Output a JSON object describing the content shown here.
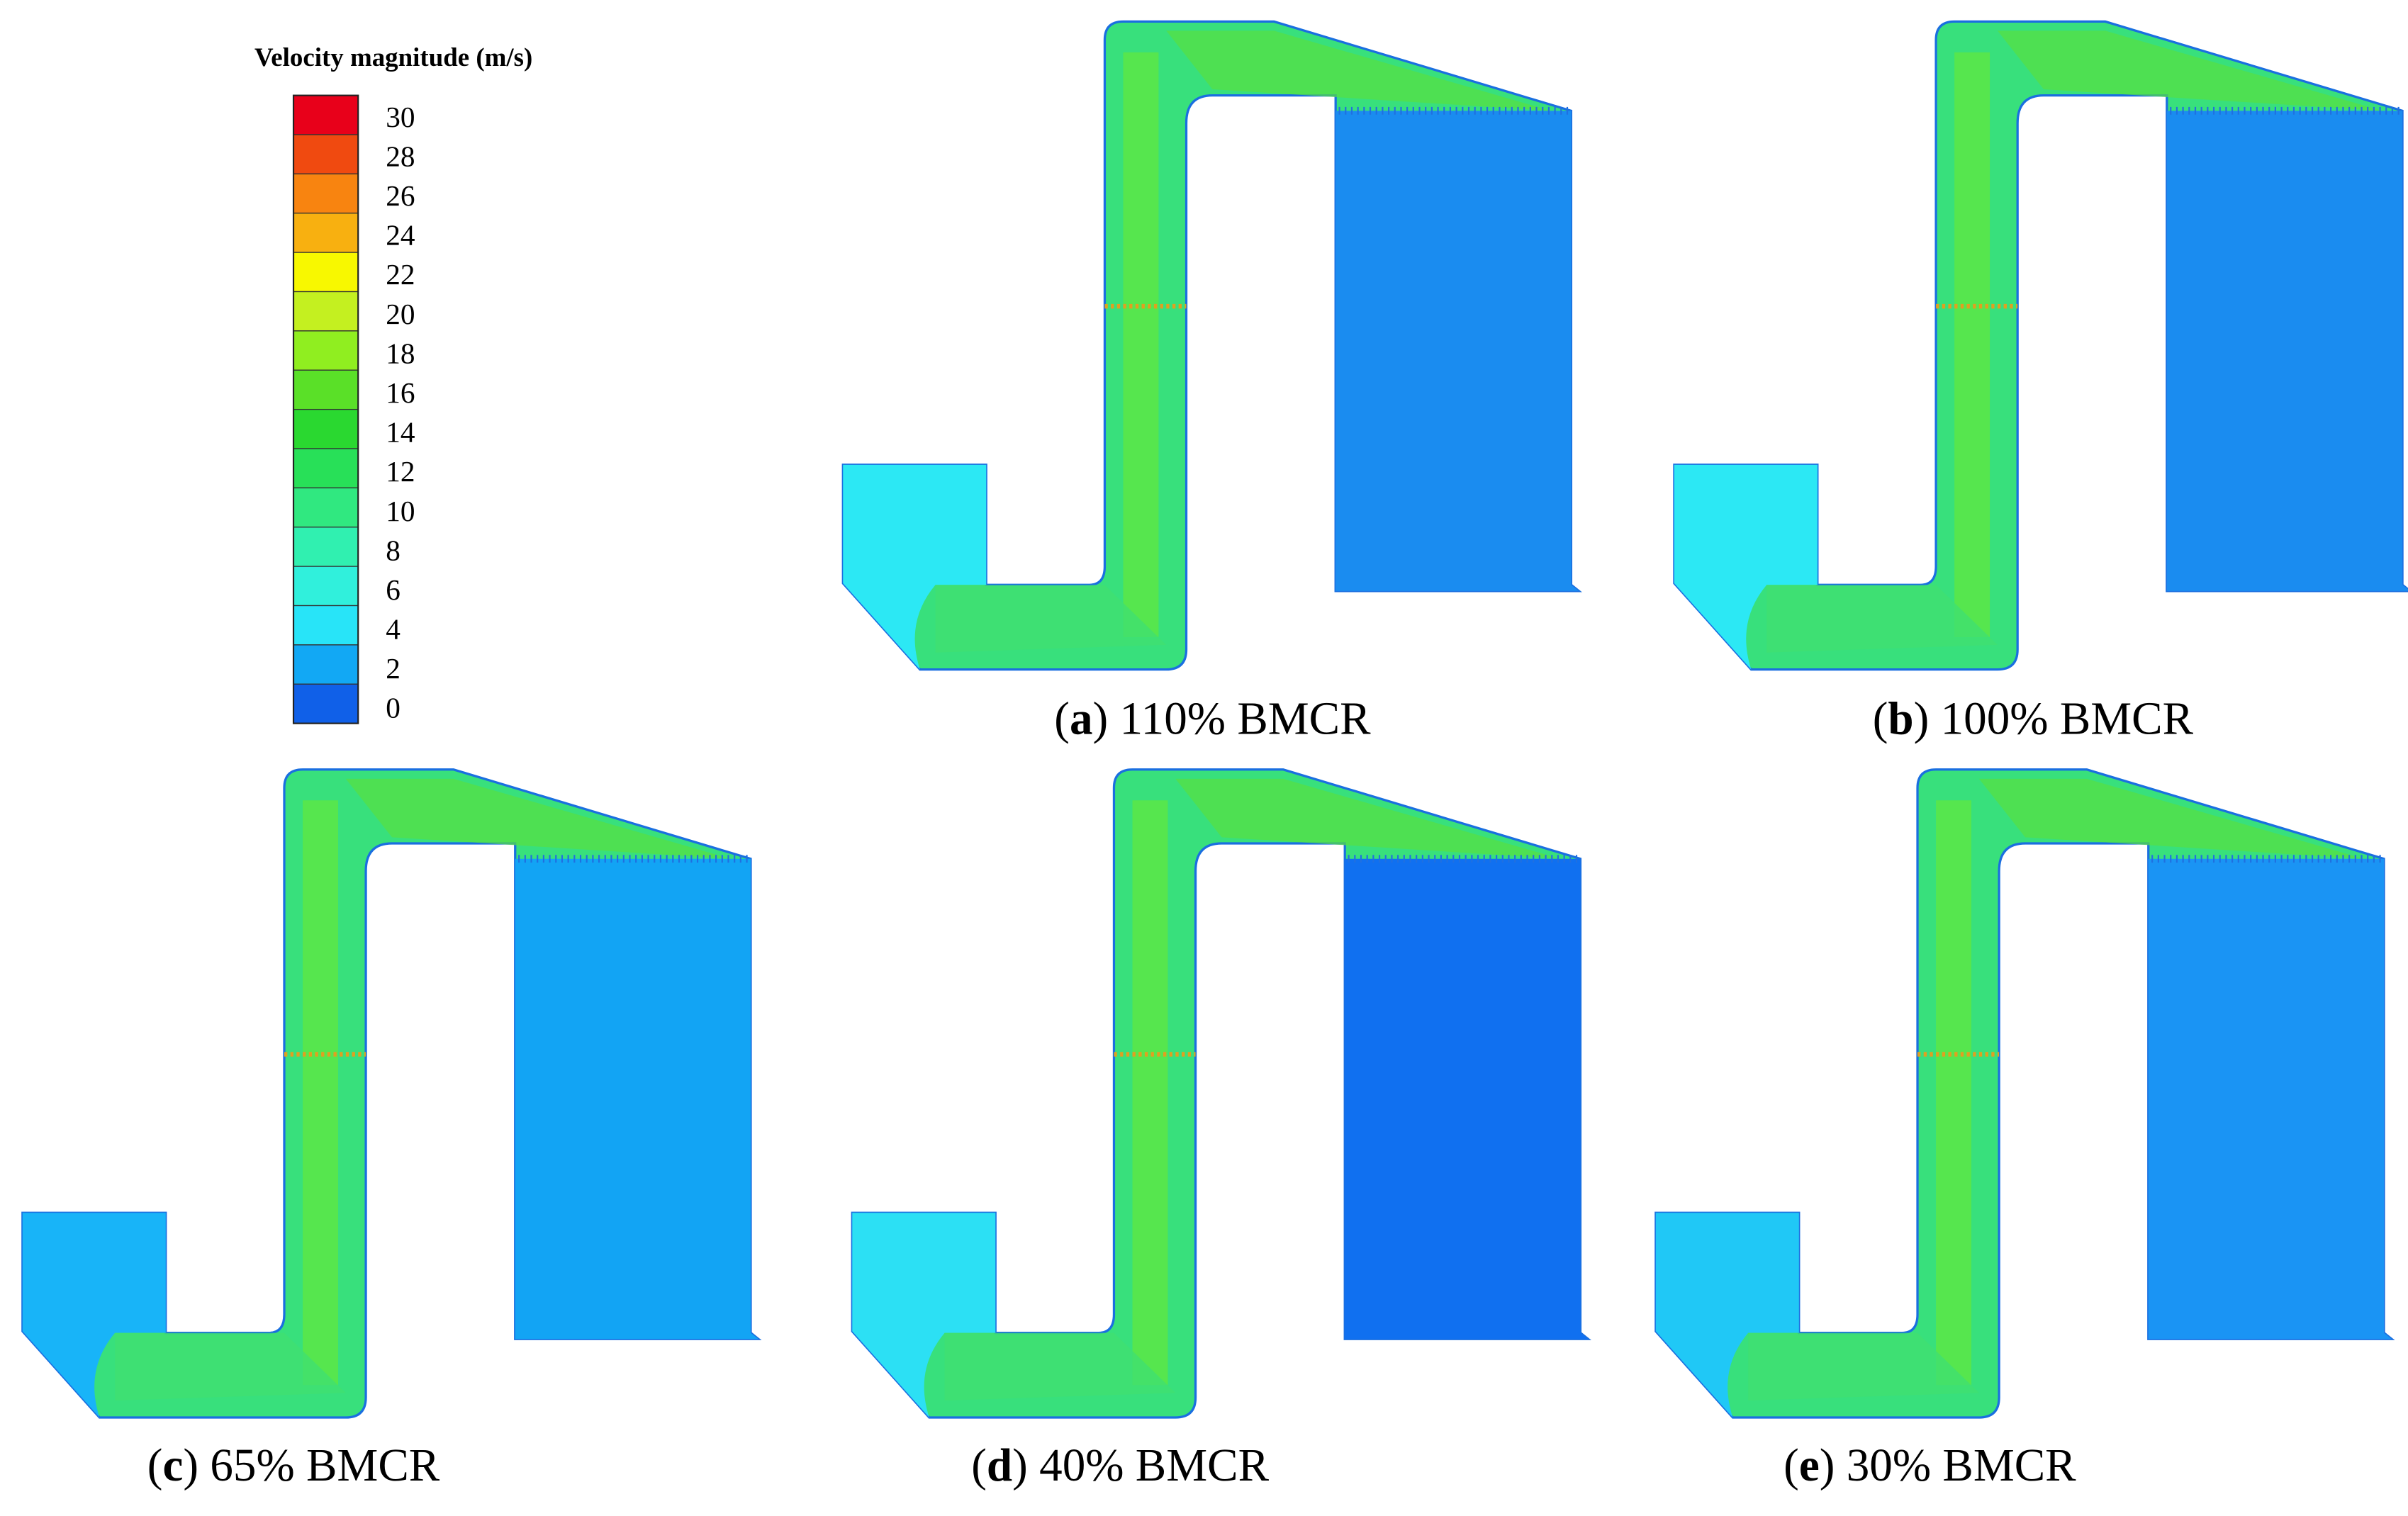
{
  "legend": {
    "title": "Velocity magnitude (m/s)",
    "ticks": [
      30,
      28,
      26,
      24,
      22,
      20,
      18,
      16,
      14,
      12,
      10,
      8,
      6,
      4,
      2,
      0
    ],
    "colors": [
      "#e8001a",
      "#f04a10",
      "#f88410",
      "#f8b010",
      "#f8f800",
      "#c4f020",
      "#90ee20",
      "#5ae028",
      "#2ad830",
      "#28e058",
      "#30e880",
      "#30f0b0",
      "#30f0dc",
      "#28e4f8",
      "#12a8f4",
      "#1060e8"
    ]
  },
  "panels": [
    {
      "caption": [
        "(",
        "a",
        ") 110% BMCR"
      ]
    },
    {
      "caption": [
        "(",
        "b",
        ") 100% BMCR"
      ]
    },
    {
      "caption": [
        "(",
        "c",
        ") 65% BMCR"
      ]
    },
    {
      "caption": [
        "(",
        "d",
        ") 40% BMCR"
      ]
    },
    {
      "caption": [
        "(",
        "e",
        ") 30% BMCR"
      ]
    }
  ]
}
